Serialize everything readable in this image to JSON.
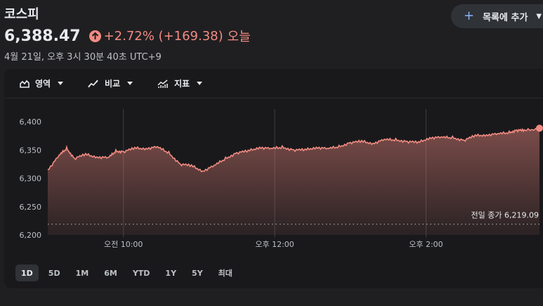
{
  "header": {
    "title": "코스피",
    "price": "6,388.47",
    "change": "+2.72% (+169.38)",
    "period": "오늘",
    "timestamp": "4월 21일, 오후 3시 30분 40초 UTC+9",
    "watchlist_label": "목록에 추가"
  },
  "toolbar": {
    "area_label": "영역",
    "compare_label": "비교",
    "indicator_label": "지표"
  },
  "ranges": [
    "1D",
    "5D",
    "1M",
    "6M",
    "YTD",
    "1Y",
    "5Y",
    "최대"
  ],
  "active_range": "1D",
  "colors": {
    "accent": "#f28b82",
    "background": "#1f1f21",
    "panel": "#19191b",
    "link": "#8ab4f8"
  },
  "chart_data": {
    "type": "area",
    "ylim": [
      6200,
      6400
    ],
    "yticks": [
      6400,
      6350,
      6300,
      6250,
      6200
    ],
    "ytick_labels": [
      "6,400",
      "6,350",
      "6,300",
      "6,250",
      "6,200"
    ],
    "xlim": [
      9.0,
      15.5
    ],
    "xticks": [
      10,
      12,
      14
    ],
    "xtick_labels": [
      "오전 10:00",
      "오후 12:00",
      "오후 2:00"
    ],
    "previous_close": 6219.09,
    "previous_close_label": "전일 종가 6,219.09",
    "x": [
      9.0,
      9.15,
      9.25,
      9.35,
      9.5,
      9.65,
      9.8,
      9.9,
      10.0,
      10.15,
      10.3,
      10.45,
      10.6,
      10.75,
      10.9,
      11.05,
      11.2,
      11.35,
      11.5,
      11.65,
      11.8,
      11.95,
      12.1,
      12.25,
      12.4,
      12.55,
      12.7,
      12.85,
      13.0,
      13.15,
      13.3,
      13.45,
      13.6,
      13.75,
      13.9,
      14.05,
      14.2,
      14.35,
      14.5,
      14.65,
      14.8,
      14.95,
      15.1,
      15.2,
      15.3,
      15.5
    ],
    "y": [
      6315,
      6340,
      6353,
      6335,
      6342,
      6338,
      6336,
      6348,
      6347,
      6353,
      6353,
      6355,
      6345,
      6325,
      6322,
      6313,
      6322,
      6335,
      6345,
      6348,
      6355,
      6352,
      6355,
      6350,
      6350,
      6355,
      6352,
      6356,
      6363,
      6365,
      6362,
      6368,
      6368,
      6365,
      6363,
      6372,
      6372,
      6372,
      6367,
      6375,
      6377,
      6378,
      6381,
      6385,
      6384,
      6388.47
    ]
  }
}
